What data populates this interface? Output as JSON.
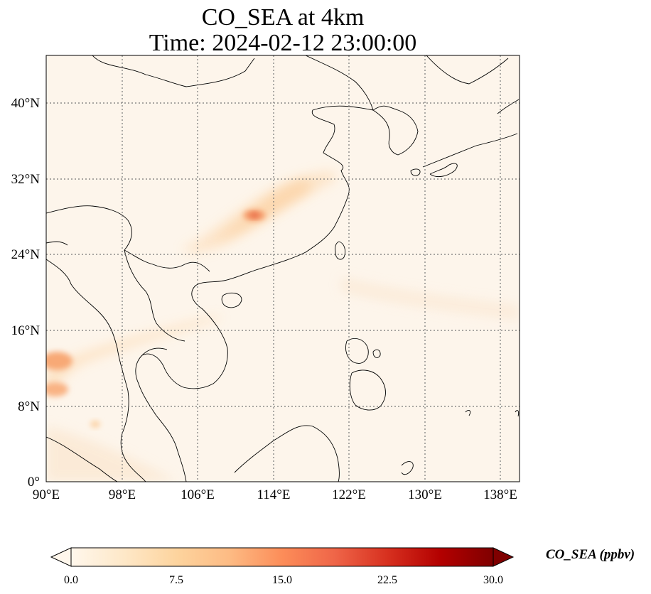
{
  "title": {
    "line1": "CO_SEA at 4km",
    "line2": "Time: 2024-02-12 23:00:00"
  },
  "map": {
    "lon_range": [
      90,
      140
    ],
    "lat_range": [
      0,
      45
    ],
    "gridlines": true,
    "gridline_style": "dotted",
    "lon_ticks": [
      "90°E",
      "98°E",
      "106°E",
      "114°E",
      "122°E",
      "130°E",
      "138°E"
    ],
    "lat_ticks": [
      "0°",
      "8°N",
      "16°N",
      "24°N",
      "32°N",
      "40°N"
    ],
    "background_color": "#fdf5eb",
    "coastline_color": "#000000"
  },
  "colorbar": {
    "label": "CO_SEA (ppbv)",
    "ticks": [
      "0.0",
      "7.5",
      "15.0",
      "22.5",
      "30.0"
    ],
    "range": [
      0,
      30
    ],
    "extend": "both",
    "colormap": "OrRd",
    "colors": [
      "#fff7ec",
      "#fee8c8",
      "#fdd49e",
      "#fdbb84",
      "#fc8d59",
      "#ef6548",
      "#d7301f",
      "#b30000",
      "#7f0000"
    ]
  }
}
